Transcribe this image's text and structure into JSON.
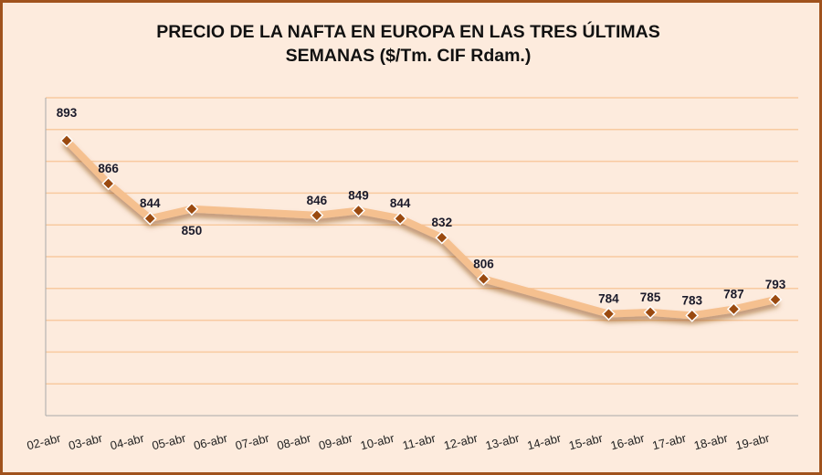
{
  "chart_data": {
    "type": "line",
    "title_line1": "PRECIO DE LA NAFTA EN EUROPA EN LAS TRES ÚLTIMAS",
    "title_line2": "SEMANAS ($/Tm. CIF Rdam.)",
    "xlabel": "",
    "ylabel": "",
    "categories": [
      "02-abr",
      "03-abr",
      "04-abr",
      "05-abr",
      "06-abr",
      "07-abr",
      "08-abr",
      "09-abr",
      "10-abr",
      "11-abr",
      "12-abr",
      "13-abr",
      "14-abr",
      "15-abr",
      "16-abr",
      "17-abr",
      "18-abr",
      "19-abr"
    ],
    "series": [
      {
        "name": "Nafta",
        "points": [
          {
            "x": "02-abr",
            "y": 893,
            "label_pos": "above"
          },
          {
            "x": "03-abr",
            "y": 866,
            "label_pos": "above"
          },
          {
            "x": "04-abr",
            "y": 844,
            "label_pos": "above"
          },
          {
            "x": "05-abr",
            "y": 850,
            "label_pos": "below"
          },
          {
            "x": "08-abr",
            "y": 846,
            "label_pos": "above"
          },
          {
            "x": "09-abr",
            "y": 849,
            "label_pos": "above"
          },
          {
            "x": "10-abr",
            "y": 844,
            "label_pos": "above"
          },
          {
            "x": "11-abr",
            "y": 832,
            "label_pos": "above"
          },
          {
            "x": "12-abr",
            "y": 806,
            "label_pos": "above"
          },
          {
            "x": "15-abr",
            "y": 784,
            "label_pos": "above"
          },
          {
            "x": "16-abr",
            "y": 785,
            "label_pos": "above"
          },
          {
            "x": "17-abr",
            "y": 783,
            "label_pos": "above"
          },
          {
            "x": "18-abr",
            "y": 787,
            "label_pos": "above"
          },
          {
            "x": "19-abr",
            "y": 793,
            "label_pos": "above"
          }
        ]
      }
    ],
    "ylim": [
      720,
      920
    ],
    "ystep": 20,
    "grid": true,
    "y_tick_labels_shown": false,
    "legend": "none",
    "colors": {
      "line": "#f5c08f",
      "marker": "#9a4a10",
      "marker_edge": "#ffffff",
      "grid": "#f8caa0",
      "frame": "#a0521d",
      "background": "#fdebdd"
    }
  }
}
